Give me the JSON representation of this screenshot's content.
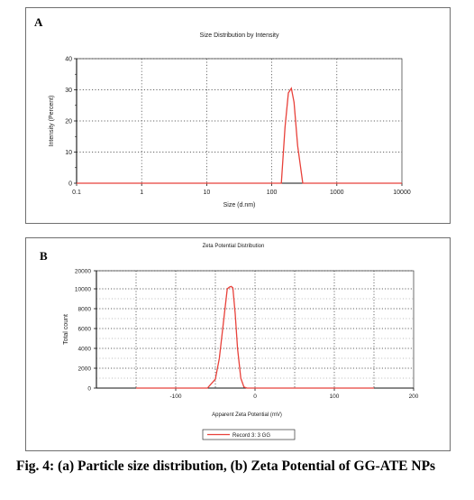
{
  "caption": "Fig. 4: (a) Particle size distribution, (b) Zeta Potential of GG-ATE NPs",
  "chart_data": [
    {
      "type": "line",
      "panel_label": "A",
      "title": "Size Distribution by Intensity",
      "xlabel": "Size (d.nm)",
      "ylabel": "Intensity (Percent)",
      "x_scale": "log",
      "xlim": [
        0.1,
        10000
      ],
      "ylim": [
        0,
        40
      ],
      "x_ticks": [
        "0.1",
        "1",
        "10",
        "100",
        "1000",
        "10000"
      ],
      "x_tick_values": [
        0.1,
        1,
        10,
        100,
        1000,
        10000
      ],
      "y_ticks": [
        0,
        10,
        20,
        30,
        40
      ],
      "grid": true,
      "line_color": "#e8413a",
      "series": [
        {
          "x": [
            0.1,
            0.5,
            1,
            10,
            100,
            140,
            160,
            180,
            200,
            220,
            250,
            300,
            1000,
            10000
          ],
          "y": [
            0,
            0,
            0,
            0,
            0,
            0,
            18,
            29,
            30.5,
            26,
            12,
            0,
            0,
            0
          ]
        }
      ]
    },
    {
      "type": "line",
      "panel_label": "B",
      "title": "Zeta Potential Distribution",
      "xlabel": "Apparent Zeta Potential (mV)",
      "ylabel": "Total count",
      "xlim": [
        -200,
        200
      ],
      "ylim": [
        0,
        20000
      ],
      "x_ticks": [
        "-100",
        "0",
        "100",
        "200"
      ],
      "x_tick_values": [
        -100,
        0,
        100,
        200
      ],
      "y_ticks": [
        0,
        2000,
        4000,
        6000,
        8000,
        10000,
        20000
      ],
      "grid": true,
      "line_color": "#e8413a",
      "legend_position": "bottom-center",
      "series": [
        {
          "name": "Record 3: 3 GG",
          "x": [
            -150,
            -60,
            -50,
            -45,
            -40,
            -35,
            -32,
            -30,
            -28,
            -25,
            -22,
            -18,
            -14,
            -10,
            50,
            150
          ],
          "y": [
            0,
            0,
            900,
            3000,
            6500,
            10000,
            11000,
            11300,
            10500,
            7500,
            4000,
            1000,
            100,
            0,
            0,
            0
          ]
        }
      ]
    }
  ]
}
